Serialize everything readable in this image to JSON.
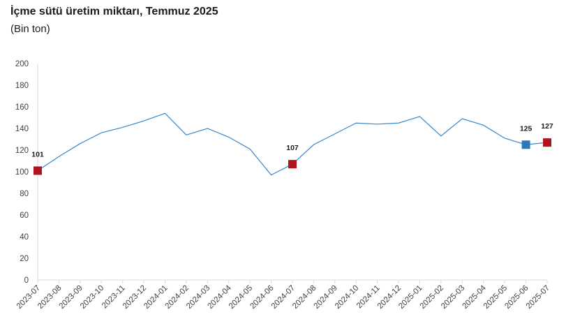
{
  "header": {
    "title": "İçme sütü üretim miktarı, Temmuz 2025",
    "subtitle": "(Bin ton)"
  },
  "chart_data": {
    "type": "line",
    "title": "İçme sütü üretim miktarı, Temmuz 2025",
    "subtitle": "(Bin ton)",
    "xlabel": "",
    "ylabel": "",
    "ylim": [
      0,
      200
    ],
    "yticks": [
      0,
      20,
      40,
      60,
      80,
      100,
      120,
      140,
      160,
      180,
      200
    ],
    "grid": false,
    "line_color": "#3a86c8",
    "categories": [
      "2023-07",
      "2023-08",
      "2023-09",
      "2023-10",
      "2023-11",
      "2023-12",
      "2024-01",
      "2024-02",
      "2024-03",
      "2024-04",
      "2024-05",
      "2024-06",
      "2024-07",
      "2024-08",
      "2024-09",
      "2024-10",
      "2024-11",
      "2024-12",
      "2025-01",
      "2025-02",
      "2025-03",
      "2025-04",
      "2025-05",
      "2025-06",
      "2025-07"
    ],
    "series": [
      {
        "values": [
          101,
          114,
          126,
          136,
          141,
          147,
          154,
          134,
          140,
          132,
          121,
          97,
          107,
          125,
          135,
          145,
          144,
          145,
          151,
          133,
          149,
          143,
          131,
          125,
          127
        ]
      }
    ],
    "highlights": [
      {
        "category": "2023-07",
        "value": 101,
        "label": "101",
        "color": "#b0151e"
      },
      {
        "category": "2024-07",
        "value": 107,
        "label": "107",
        "color": "#b0151e"
      },
      {
        "category": "2025-06",
        "value": 125,
        "label": "125",
        "color": "#2f77b8"
      },
      {
        "category": "2025-07",
        "value": 127,
        "label": "127",
        "color": "#b0151e"
      }
    ]
  }
}
